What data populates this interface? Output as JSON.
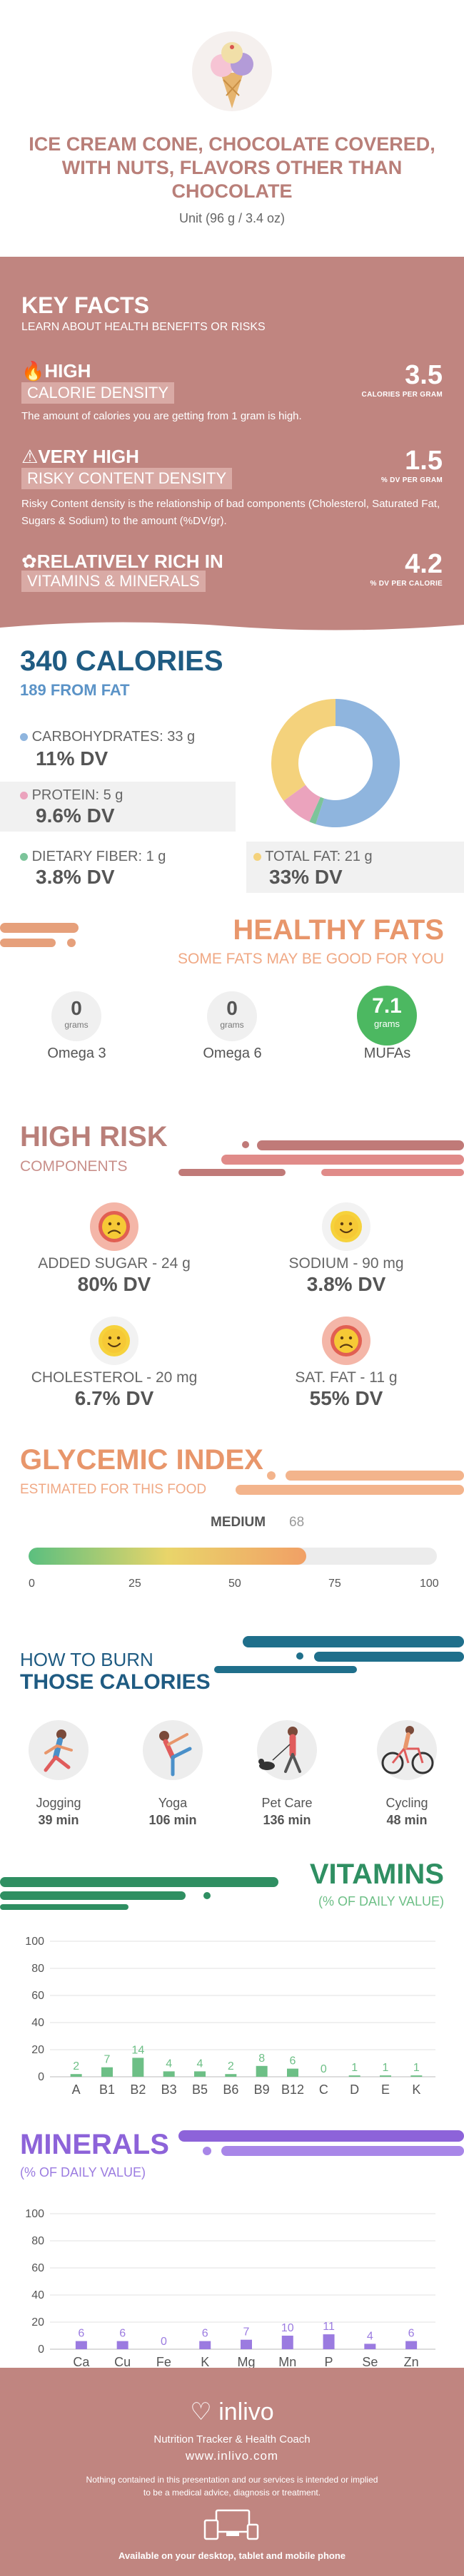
{
  "header": {
    "title": "ICE CREAM CONE, CHOCOLATE COVERED, WITH NUTS, FLAVORS OTHER THAN CHOCOLATE",
    "unit": "Unit (96 g / 3.4 oz)"
  },
  "key_facts": {
    "title": "KEY FACTS",
    "subtitle": "LEARN ABOUT HEALTH BENEFITS OR RISKS",
    "items": [
      {
        "level": "HIGH",
        "name": "CALORIE DENSITY",
        "value": "3.5",
        "unit": "CALORIES PER GRAM",
        "description": "The amount of calories you are getting from 1 gram is high.",
        "icon": "flame-icon"
      },
      {
        "level": "VERY HIGH",
        "name": "RISKY CONTENT DENSITY",
        "value": "1.5",
        "unit": "% DV PER GRAM",
        "description": "Risky Content density is the relationship of bad components (Cholesterol, Saturated Fat, Sugars & Sodium) to the amount (%DV/gr).",
        "icon": "warning-icon"
      },
      {
        "level": "RELATIVELY RICH IN",
        "name": "VITAMINS & MINERALS",
        "value": "4.2",
        "unit": "% DV PER CALORIE",
        "description": "",
        "icon": "leaf-icon"
      }
    ]
  },
  "calories": {
    "title": "340 CALORIES",
    "subtitle": "189 FROM FAT",
    "macros": [
      {
        "label": "CARBOHYDRATES: 33 g",
        "dv": "11% DV",
        "color": "#8fb5de"
      },
      {
        "label": "PROTEIN: 5 g",
        "dv": "9.6% DV",
        "color": "#eba3bd"
      },
      {
        "label": "DIETARY FIBER: 1 g",
        "dv": "3.8% DV",
        "color": "#7cc49a"
      },
      {
        "label": "TOTAL FAT: 21 g",
        "dv": "33% DV",
        "color": "#f4d27c"
      }
    ],
    "donut": [
      {
        "name": "carbohydrates",
        "grams": 33,
        "color": "#8fb5de"
      },
      {
        "name": "dietary-fiber",
        "grams": 1,
        "color": "#7cc49a"
      },
      {
        "name": "protein",
        "grams": 5,
        "color": "#eba3bd"
      },
      {
        "name": "total-fat",
        "grams": 21,
        "color": "#f4d27c"
      }
    ]
  },
  "fats": {
    "title": "HEALTHY FATS",
    "subtitle": "SOME FATS MAY BE GOOD FOR YOU",
    "items": [
      {
        "value": "0",
        "unit": "grams",
        "label": "Omega 3",
        "highlight": false
      },
      {
        "value": "0",
        "unit": "grams",
        "label": "Omega 6",
        "highlight": false
      },
      {
        "value": "7.1",
        "unit": "grams",
        "label": "MUFAs",
        "highlight": true
      }
    ]
  },
  "risk": {
    "title": "HIGH RISK",
    "subtitle": "COMPONENTS",
    "items": [
      {
        "label": "ADDED SUGAR - 24 g",
        "dv": "80% DV",
        "mood": "sad"
      },
      {
        "label": "SODIUM - 90 mg",
        "dv": "3.8% DV",
        "mood": "happy"
      },
      {
        "label": "CHOLESTEROL - 20 mg",
        "dv": "6.7% DV",
        "mood": "happy"
      },
      {
        "label": "SAT. FAT - 11 g",
        "dv": "55% DV",
        "mood": "sad"
      }
    ]
  },
  "glycemic": {
    "title": "GLYCEMIC INDEX",
    "subtitle": "ESTIMATED FOR THIS FOOD",
    "level": "MEDIUM",
    "value": 68,
    "value_text": "68",
    "ticks": [
      "0",
      "25",
      "50",
      "75",
      "100"
    ]
  },
  "burn": {
    "title_line1": "HOW TO BURN",
    "title_line2": "THOSE CALORIES",
    "activities": [
      {
        "name": "Jogging",
        "time": "39 min",
        "icon": "jogging-icon"
      },
      {
        "name": "Yoga",
        "time": "106 min",
        "icon": "yoga-icon"
      },
      {
        "name": "Pet Care",
        "time": "136 min",
        "icon": "pet-care-icon"
      },
      {
        "name": "Cycling",
        "time": "48 min",
        "icon": "cycling-icon"
      }
    ]
  },
  "chart_data": [
    {
      "type": "bar",
      "title": "VITAMINS",
      "subtitle": "(% OF DAILY VALUE)",
      "categories": [
        "A",
        "B1",
        "B2",
        "B3",
        "B5",
        "B6",
        "B9",
        "B12",
        "C",
        "D",
        "E",
        "K"
      ],
      "values": [
        2,
        7,
        14,
        4,
        4,
        2,
        8,
        6,
        0,
        1,
        1,
        1
      ],
      "ylim": [
        0,
        100
      ],
      "yticks": [
        0,
        20,
        40,
        60,
        80,
        100
      ],
      "color": "#6dbf86",
      "grid": true
    },
    {
      "type": "bar",
      "title": "MINERALS",
      "subtitle": "(% OF DAILY VALUE)",
      "categories": [
        "Ca",
        "Cu",
        "Fe",
        "K",
        "Mg",
        "Mn",
        "P",
        "Se",
        "Zn"
      ],
      "values": [
        6,
        6,
        0,
        6,
        7,
        10,
        11,
        4,
        6
      ],
      "ylim": [
        0,
        100
      ],
      "yticks": [
        0,
        20,
        40,
        60,
        80,
        100
      ],
      "color": "#9b7be0",
      "grid": true
    }
  ],
  "footer": {
    "brand": "inlivo",
    "tagline": "Nutrition Tracker & Health Coach",
    "url": "www.inlivo.com",
    "disclaimer_line1": "Nothing contained in this presentation and our services is intended or implied",
    "disclaimer_line2": "to be a medical advice, diagnosis or treatment.",
    "devices": "Available on your desktop, tablet and mobile phone"
  }
}
